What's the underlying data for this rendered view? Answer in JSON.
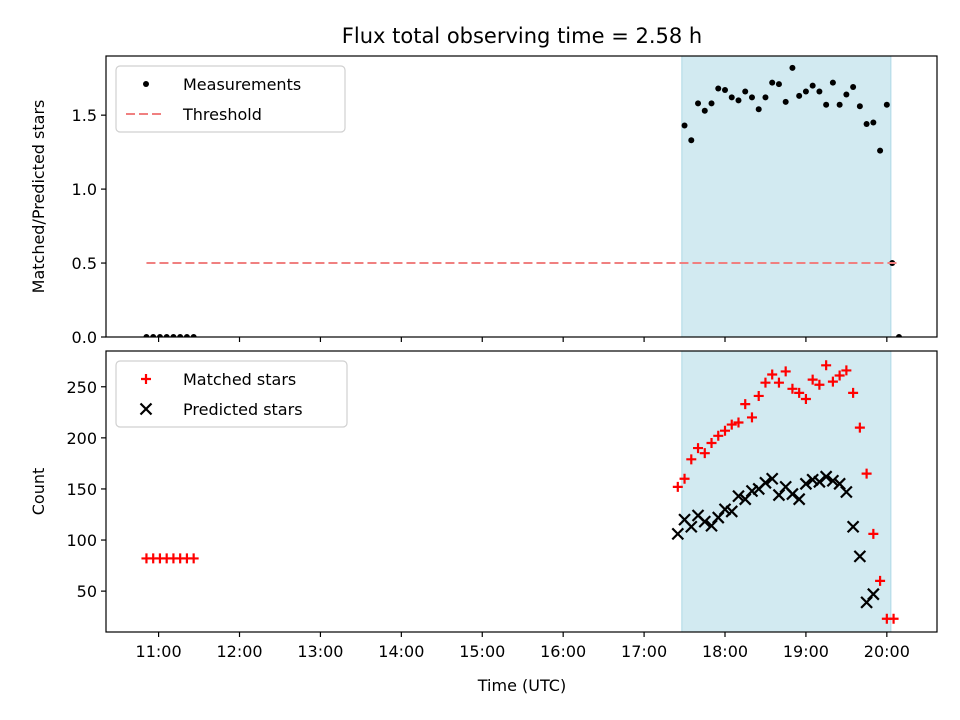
{
  "chart_data": {
    "title": "Flux total observing time = 2.58 h",
    "xlabel": "Time (UTC)",
    "x_ticks": [
      "11:00",
      "12:00",
      "13:00",
      "14:00",
      "15:00",
      "16:00",
      "17:00",
      "18:00",
      "19:00",
      "20:00"
    ],
    "x_range_hours": [
      10.35,
      20.62
    ],
    "colors": {
      "measurements": "#000000",
      "threshold": "#f08080",
      "matched": "#ff0000",
      "predicted": "#000000",
      "shade": "#add8e6"
    },
    "panels": [
      {
        "type": "scatter",
        "ylabel": "Matched/Predicted stars",
        "ylim": [
          0.0,
          1.9
        ],
        "yticks": [
          0.0,
          0.5,
          1.0,
          1.5
        ],
        "y_tick_labels": [
          "0.0",
          "0.5",
          "1.0",
          "1.5"
        ],
        "shaded_interval": [
          "17:28",
          "20:03"
        ],
        "legend_position": "top-left",
        "series": [
          {
            "name": "Measurements",
            "marker": "dot",
            "color": "#000000",
            "points": [
              [
                "10:51",
                0.0
              ],
              [
                "10:56",
                0.0
              ],
              [
                "11:01",
                0.0
              ],
              [
                "11:06",
                0.0
              ],
              [
                "11:11",
                0.0
              ],
              [
                "11:16",
                0.0
              ],
              [
                "11:21",
                0.0
              ],
              [
                "11:26",
                0.0
              ],
              [
                "17:30",
                1.43
              ],
              [
                "17:35",
                1.33
              ],
              [
                "17:40",
                1.58
              ],
              [
                "17:45",
                1.53
              ],
              [
                "17:50",
                1.58
              ],
              [
                "17:55",
                1.68
              ],
              [
                "18:00",
                1.67
              ],
              [
                "18:05",
                1.62
              ],
              [
                "18:10",
                1.6
              ],
              [
                "18:15",
                1.66
              ],
              [
                "18:20",
                1.62
              ],
              [
                "18:25",
                1.54
              ],
              [
                "18:30",
                1.62
              ],
              [
                "18:35",
                1.72
              ],
              [
                "18:40",
                1.71
              ],
              [
                "18:45",
                1.59
              ],
              [
                "18:50",
                1.82
              ],
              [
                "18:55",
                1.63
              ],
              [
                "19:00",
                1.66
              ],
              [
                "19:05",
                1.7
              ],
              [
                "19:10",
                1.66
              ],
              [
                "19:15",
                1.57
              ],
              [
                "19:20",
                1.72
              ],
              [
                "19:25",
                1.57
              ],
              [
                "19:30",
                1.64
              ],
              [
                "19:35",
                1.69
              ],
              [
                "19:40",
                1.56
              ],
              [
                "19:45",
                1.44
              ],
              [
                "19:50",
                1.45
              ],
              [
                "19:55",
                1.26
              ],
              [
                "20:00",
                1.57
              ],
              [
                "20:04",
                0.5
              ],
              [
                "20:09",
                0.0
              ]
            ]
          },
          {
            "name": "Threshold",
            "style": "dashed-line",
            "color": "#f08080",
            "x": [
              "10:51",
              "20:09"
            ],
            "y": [
              0.5,
              0.5
            ]
          }
        ]
      },
      {
        "type": "scatter",
        "ylabel": "Count",
        "ylim": [
          10,
          285
        ],
        "yticks": [
          50,
          100,
          150,
          200,
          250
        ],
        "y_tick_labels": [
          "50",
          "100",
          "150",
          "200",
          "250"
        ],
        "shaded_interval": [
          "17:28",
          "20:03"
        ],
        "legend_position": "top-left",
        "series": [
          {
            "name": "Matched stars",
            "marker": "plus",
            "color": "#ff0000",
            "points": [
              [
                "10:51",
                82
              ],
              [
                "10:56",
                82
              ],
              [
                "11:01",
                82
              ],
              [
                "11:06",
                82
              ],
              [
                "11:11",
                82
              ],
              [
                "11:16",
                82
              ],
              [
                "11:21",
                82
              ],
              [
                "11:26",
                82
              ],
              [
                "17:25",
                152
              ],
              [
                "17:30",
                160
              ],
              [
                "17:35",
                179
              ],
              [
                "17:40",
                190
              ],
              [
                "17:45",
                185
              ],
              [
                "17:50",
                195
              ],
              [
                "17:55",
                202
              ],
              [
                "18:00",
                207
              ],
              [
                "18:05",
                213
              ],
              [
                "18:10",
                215
              ],
              [
                "18:15",
                233
              ],
              [
                "18:20",
                220
              ],
              [
                "18:25",
                241
              ],
              [
                "18:30",
                254
              ],
              [
                "18:35",
                262
              ],
              [
                "18:40",
                254
              ],
              [
                "18:45",
                265
              ],
              [
                "18:50",
                248
              ],
              [
                "18:55",
                244
              ],
              [
                "19:00",
                238
              ],
              [
                "19:05",
                257
              ],
              [
                "19:10",
                252
              ],
              [
                "19:15",
                271
              ],
              [
                "19:20",
                255
              ],
              [
                "19:25",
                261
              ],
              [
                "19:30",
                266
              ],
              [
                "19:35",
                244
              ],
              [
                "19:40",
                210
              ],
              [
                "19:45",
                165
              ],
              [
                "19:50",
                106
              ],
              [
                "19:55",
                60
              ],
              [
                "20:00",
                23
              ],
              [
                "20:05",
                23
              ]
            ]
          },
          {
            "name": "Predicted stars",
            "marker": "x",
            "color": "#000000",
            "points": [
              [
                "17:25",
                106
              ],
              [
                "17:30",
                120
              ],
              [
                "17:35",
                113
              ],
              [
                "17:40",
                124
              ],
              [
                "17:45",
                118
              ],
              [
                "17:50",
                114
              ],
              [
                "17:55",
                122
              ],
              [
                "18:00",
                130
              ],
              [
                "18:05",
                128
              ],
              [
                "18:10",
                143
              ],
              [
                "18:15",
                140
              ],
              [
                "18:20",
                148
              ],
              [
                "18:25",
                150
              ],
              [
                "18:30",
                156
              ],
              [
                "18:35",
                160
              ],
              [
                "18:40",
                144
              ],
              [
                "18:45",
                152
              ],
              [
                "18:50",
                145
              ],
              [
                "18:55",
                140
              ],
              [
                "19:00",
                155
              ],
              [
                "19:05",
                159
              ],
              [
                "19:10",
                157
              ],
              [
                "19:15",
                162
              ],
              [
                "19:20",
                158
              ],
              [
                "19:25",
                155
              ],
              [
                "19:30",
                147
              ],
              [
                "19:35",
                113
              ],
              [
                "19:40",
                84
              ],
              [
                "19:45",
                39
              ],
              [
                "19:50",
                47
              ]
            ]
          }
        ]
      }
    ]
  }
}
